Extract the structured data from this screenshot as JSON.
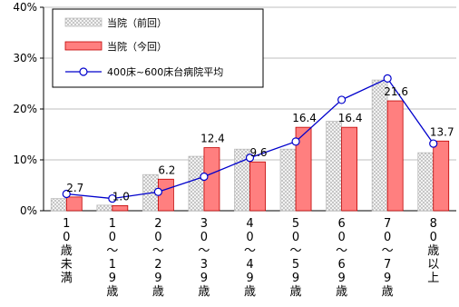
{
  "chart_data": {
    "type": "bar",
    "yticks": [
      "0%",
      "10%",
      "20%",
      "30%",
      "40%"
    ],
    "ylim": [
      0,
      40
    ],
    "categories": [
      [
        "1",
        "0",
        "歳",
        "未",
        "満"
      ],
      [
        "1",
        "0",
        "~",
        "1",
        "9",
        "歳"
      ],
      [
        "2",
        "0",
        "~",
        "2",
        "9",
        "歳"
      ],
      [
        "3",
        "0",
        "~",
        "3",
        "9",
        "歳"
      ],
      [
        "4",
        "0",
        "~",
        "4",
        "9",
        "歳"
      ],
      [
        "5",
        "0",
        "~",
        "5",
        "9",
        "歳"
      ],
      [
        "6",
        "0",
        "~",
        "6",
        "9",
        "歳"
      ],
      [
        "7",
        "0",
        "~",
        "7",
        "9",
        "歳"
      ],
      [
        "8",
        "0",
        "歳",
        "以",
        "上"
      ]
    ],
    "series": [
      {
        "name": "当院（前回）",
        "kind": "bar",
        "values": [
          2.4,
          1.1,
          7.1,
          10.7,
          12.1,
          12.1,
          17.6,
          25.7,
          11.4
        ]
      },
      {
        "name": "当院（今回）",
        "kind": "bar",
        "values": [
          2.7,
          1.0,
          6.2,
          12.4,
          9.6,
          16.4,
          16.4,
          21.6,
          13.7
        ]
      },
      {
        "name": "400床~600床台病院平均",
        "kind": "line",
        "values": [
          3.3,
          2.4,
          3.7,
          6.7,
          10.4,
          13.6,
          21.8,
          26.0,
          13.2
        ]
      }
    ],
    "data_labels": [
      "2.7",
      "1.0",
      "6.2",
      "12.4",
      "9.6",
      "16.4",
      "16.4",
      "21.6",
      "13.7"
    ],
    "grid": true,
    "legend_position": "top-left",
    "colors": {
      "prev_fill": "#d9d9d9",
      "curr_fill": "#ff7f7f",
      "curr_stroke": "#c00000",
      "line": "#0000cc",
      "grid": "#bfbfbf"
    }
  }
}
